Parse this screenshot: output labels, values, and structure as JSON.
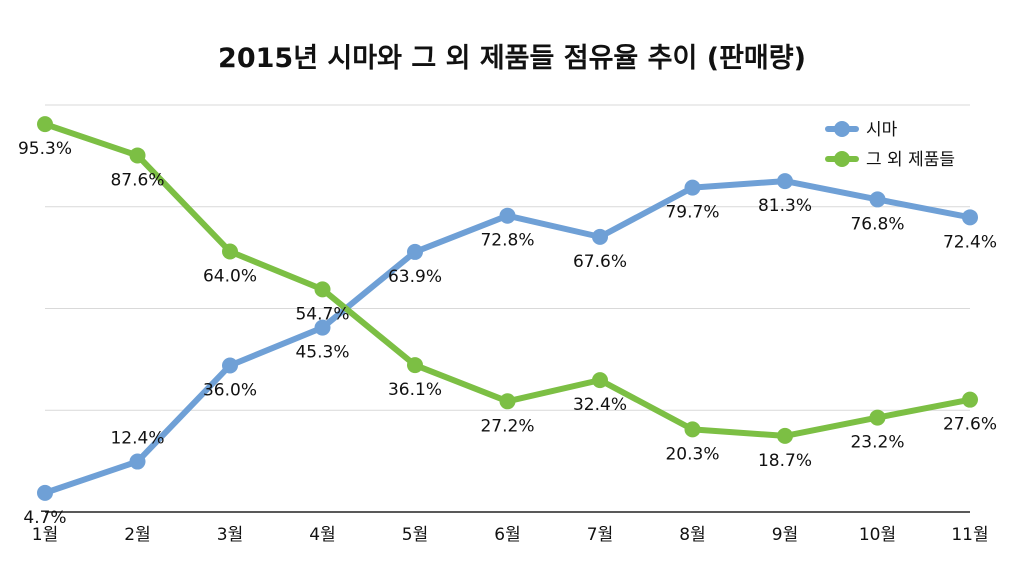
{
  "chart_data": {
    "type": "line",
    "title": "2015년 시마와 그 외 제품들 점유율 추이 (판매량)",
    "xlabel": "",
    "ylabel": "",
    "categories": [
      "1월",
      "2월",
      "3월",
      "4월",
      "5월",
      "6월",
      "7월",
      "8월",
      "9월",
      "10월",
      "11월"
    ],
    "ylim": [
      0,
      100
    ],
    "grid": true,
    "legend_position": "top-right",
    "series": [
      {
        "name": "시마",
        "color": "#6fa0d6",
        "values": [
          4.7,
          12.4,
          36.0,
          45.3,
          63.9,
          72.8,
          67.6,
          79.7,
          81.3,
          76.8,
          72.4
        ],
        "labels": [
          "4.7%",
          "12.4%",
          "36.0%",
          "45.3%",
          "63.9%",
          "72.8%",
          "67.6%",
          "79.7%",
          "81.3%",
          "76.8%",
          "72.4%"
        ]
      },
      {
        "name": "그 외 제품들",
        "color": "#7cbf44",
        "values": [
          95.3,
          87.6,
          64.0,
          54.7,
          36.1,
          27.2,
          32.4,
          20.3,
          18.7,
          23.2,
          27.6
        ],
        "labels": [
          "95.3%",
          "87.6%",
          "64.0%",
          "54.7%",
          "36.1%",
          "27.2%",
          "32.4%",
          "20.3%",
          "18.7%",
          "23.2%",
          "27.6%"
        ]
      }
    ]
  }
}
